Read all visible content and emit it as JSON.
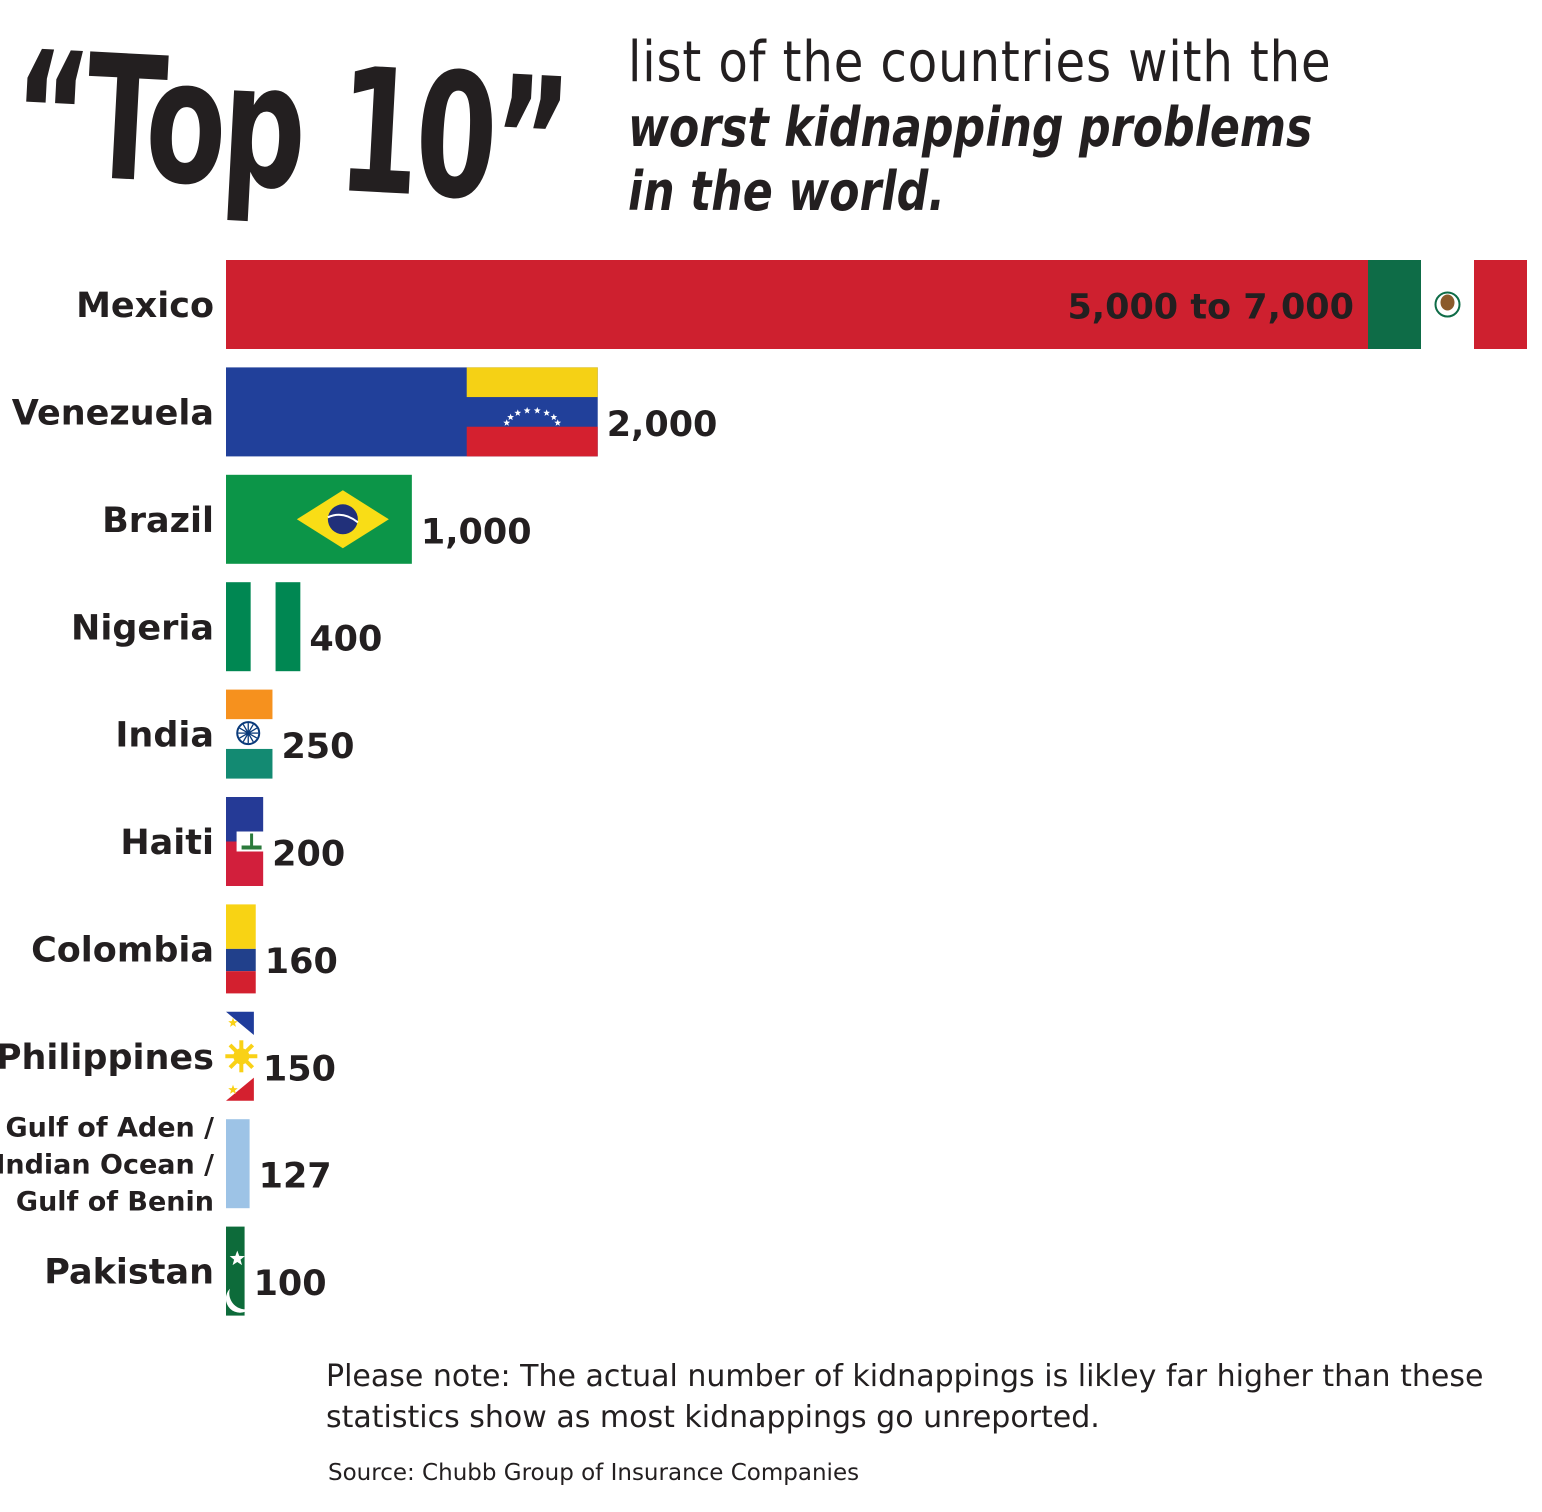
{
  "header": {
    "big_title": "“Top 10”",
    "subtitle_line1": "list of the countries with the",
    "subtitle_line2": "worst kidnapping problems",
    "subtitle_line3": "in the world."
  },
  "chart_data": {
    "type": "bar",
    "orientation": "horizontal",
    "title": "“Top 10” list of the countries with the worst kidnapping problems in the world.",
    "xlabel": "",
    "ylabel": "",
    "categories": [
      "Mexico",
      "Venezuela",
      "Brazil",
      "Nigeria",
      "India",
      "Haiti",
      "Colombia",
      "Philippines",
      "Gulf of Aden / Indian Ocean / Gulf of Benin",
      "Pakistan"
    ],
    "category_lines": [
      [
        "Mexico"
      ],
      [
        "Venezuela"
      ],
      [
        "Brazil"
      ],
      [
        "Nigeria"
      ],
      [
        "India"
      ],
      [
        "Haiti"
      ],
      [
        "Colombia"
      ],
      [
        "Philippines"
      ],
      [
        "Gulf of Aden /",
        "Indian Ocean /",
        "Gulf of Benin"
      ],
      [
        "Pakistan"
      ]
    ],
    "values": [
      7000,
      2000,
      1000,
      400,
      250,
      200,
      160,
      150,
      127,
      100
    ],
    "value_labels": [
      "5,000 to 7,000",
      "2,000",
      "1,000",
      "400",
      "250",
      "200",
      "160",
      "150",
      "127",
      "100"
    ],
    "bar_styles": [
      "flag-mexico",
      "flag-venezuela",
      "flag-brazil",
      "flag-nigeria",
      "flag-india",
      "flag-haiti",
      "flag-colombia",
      "flag-philippines",
      "solid-light-blue",
      "flag-pakistan"
    ],
    "axis_visible": false,
    "grid": false,
    "legend": "none"
  },
  "colors": {
    "text": "#231f20",
    "mexico_red": "#ce202f",
    "mexico_green": "#0e6c47",
    "venezuela_blue": "#21409a",
    "venezuela_yellow": "#f5d115",
    "venezuela_red": "#d4202f",
    "brazil_green": "#0c9548",
    "brazil_yellow": "#f9dd16",
    "brazil_blue": "#21307a",
    "nigeria_green": "#008752",
    "india_saffron": "#f6911e",
    "india_green": "#138a72",
    "india_navy": "#0a3a7a",
    "haiti_blue": "#253a96",
    "haiti_red": "#d21f3c",
    "colombia_yellow": "#f8d314",
    "colombia_blue": "#21408b",
    "colombia_red": "#d3202f",
    "philippines_blue": "#1f3c9b",
    "philippines_red": "#d4202f",
    "philippines_sun": "#f9d116",
    "gulf_blue": "#9dc3e6",
    "pakistan_green": "#0d6b3a",
    "white": "#ffffff"
  },
  "footer": {
    "note": "Please note:  The actual number of kidnappings is likley far higher than these statistics show as most kidnappings go unreported.",
    "source": "Source: Chubb Group of Insurance Companies"
  }
}
